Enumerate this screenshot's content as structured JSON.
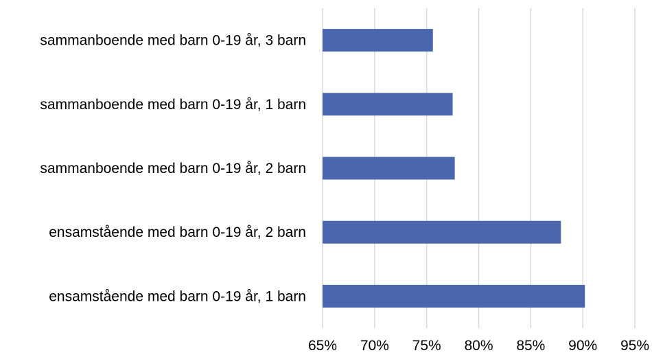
{
  "chart_data": {
    "type": "bar",
    "orientation": "horizontal",
    "title": "",
    "xlabel": "",
    "ylabel": "",
    "categories": [
      "sammanboende med barn 0-19 år, 3 barn",
      "sammanboende med barn 0-19 år, 1 barn",
      "sammanboende med barn 0-19 år, 2 barn",
      "ensamstående med barn 0-19 år, 2 barn",
      "ensamstående med barn 0-19 år, 1 barn"
    ],
    "values": [
      75.6,
      77.5,
      77.7,
      87.9,
      90.2
    ],
    "xlim": [
      65,
      95
    ],
    "xticks": [
      "65%",
      "70%",
      "75%",
      "80%",
      "85%",
      "90%",
      "95%"
    ],
    "grid": "vertical",
    "legend": "none",
    "bar_color": "#4A67AE",
    "grid_color": "#D9D9D9"
  }
}
